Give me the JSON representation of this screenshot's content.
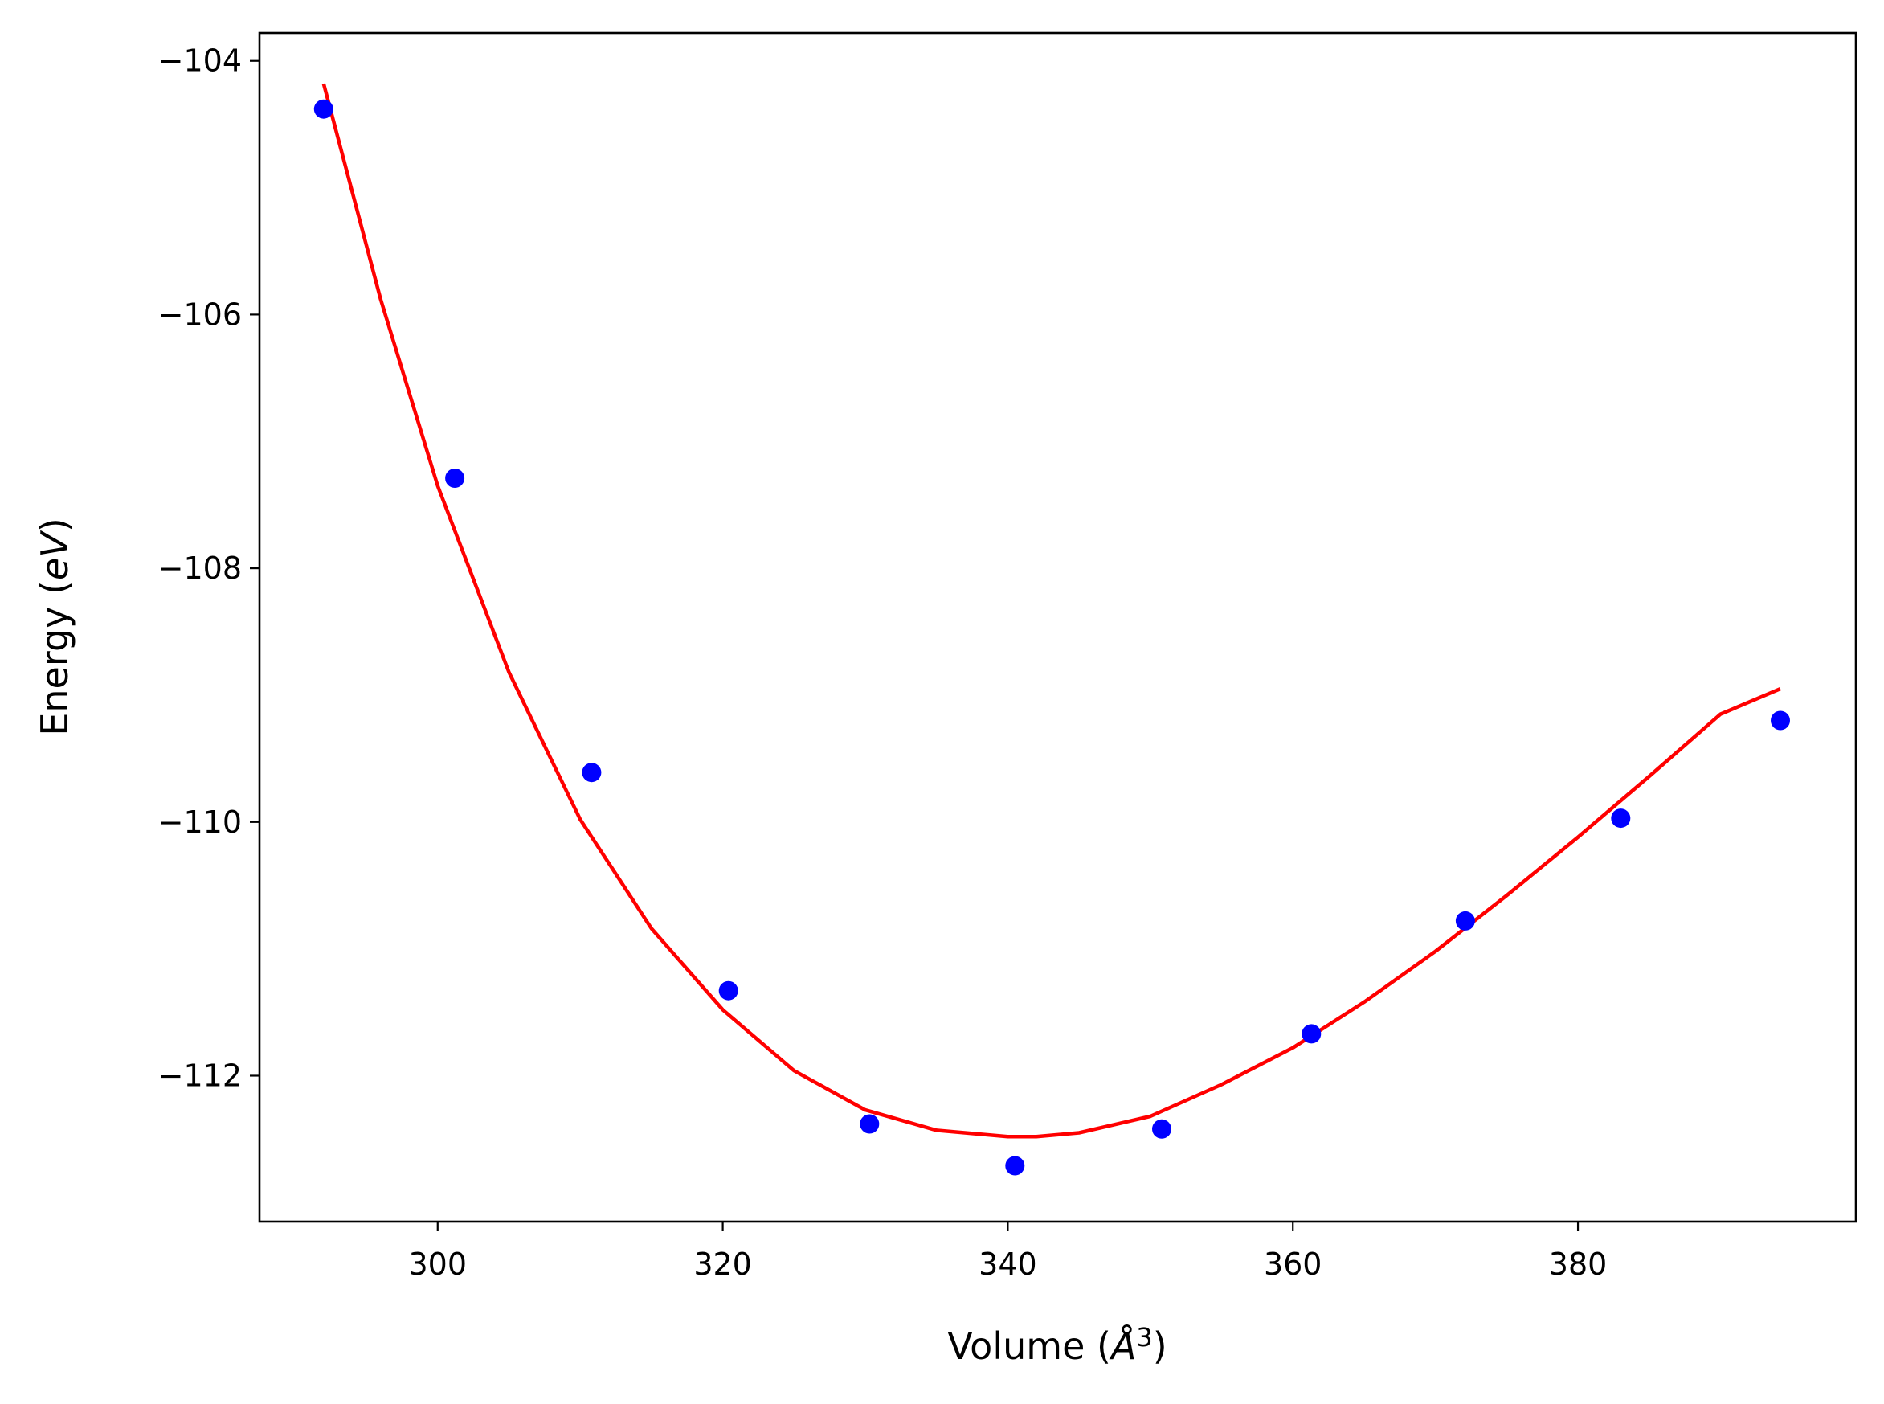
{
  "chart_data": {
    "type": "scatter",
    "title": "",
    "xlabel": "Volume (",
    "xlabel_unit": "Å",
    "xlabel_sup": "3",
    "xlabel_close": ")",
    "ylabel": "Energy (",
    "ylabel_unit": "eV",
    "ylabel_close": ")",
    "xlim": [
      287.5,
      399.5
    ],
    "ylim": [
      -113.15,
      -103.78
    ],
    "x_ticks": [
      300,
      320,
      340,
      360,
      380
    ],
    "x_tick_labels": [
      "300",
      "320",
      "340",
      "360",
      "380"
    ],
    "y_ticks": [
      -104,
      -106,
      -108,
      -110,
      -112
    ],
    "y_tick_labels": [
      "−104",
      "−106",
      "−108",
      "−110",
      "−112"
    ],
    "grid": false,
    "series": [
      {
        "kind": "scatter",
        "color": "#0000ff",
        "x": [
          292.0,
          301.2,
          310.8,
          320.4,
          330.3,
          340.5,
          350.8,
          361.3,
          372.1,
          383.0,
          394.2
        ],
        "y": [
          -104.38,
          -107.29,
          -109.61,
          -111.33,
          -112.38,
          -112.71,
          -112.42,
          -111.67,
          -110.78,
          -109.97,
          -109.2
        ]
      },
      {
        "kind": "line",
        "color": "#ff0000",
        "x": [
          292.0,
          296.0,
          300.0,
          305.0,
          310.0,
          315.0,
          320.0,
          325.0,
          330.0,
          335.0,
          340.0,
          342.0,
          345.0,
          350.0,
          355.0,
          360.0,
          365.0,
          370.0,
          375.0,
          380.0,
          385.0,
          390.0,
          394.2
        ],
        "y": [
          -104.18,
          -105.88,
          -107.35,
          -108.82,
          -109.98,
          -110.84,
          -111.48,
          -111.96,
          -112.27,
          -112.43,
          -112.48,
          -112.48,
          -112.45,
          -112.32,
          -112.07,
          -111.78,
          -111.42,
          -111.02,
          -110.58,
          -110.12,
          -109.64,
          -109.15,
          -108.95
        ]
      }
    ]
  }
}
